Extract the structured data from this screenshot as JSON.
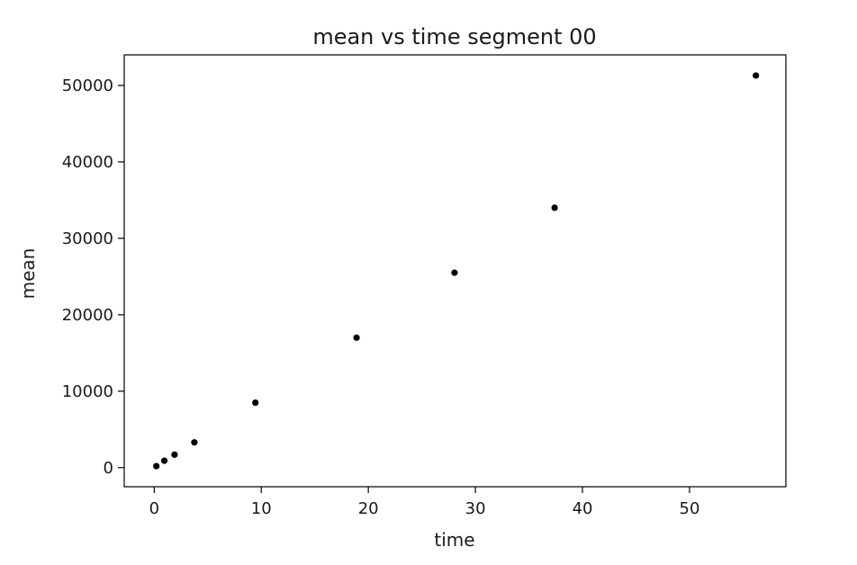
{
  "chart_data": {
    "type": "scatter",
    "title": "mean vs time segment 00",
    "xlabel": "time",
    "ylabel": "mean",
    "xlim": [
      -2.8,
      59.0
    ],
    "ylim": [
      -2500,
      54000
    ],
    "xticks": [
      0,
      10,
      20,
      30,
      40,
      50
    ],
    "yticks": [
      0,
      10000,
      20000,
      30000,
      40000,
      50000
    ],
    "grid": false,
    "legend": "none",
    "marker_color": "#000000",
    "series": [
      {
        "x": [
          0.2,
          0.95,
          1.9,
          3.75,
          9.45,
          18.9,
          28.05,
          37.4,
          56.2
        ],
        "y": [
          200,
          900,
          1700,
          3300,
          8500,
          17000,
          25500,
          34000,
          51300
        ]
      }
    ]
  }
}
